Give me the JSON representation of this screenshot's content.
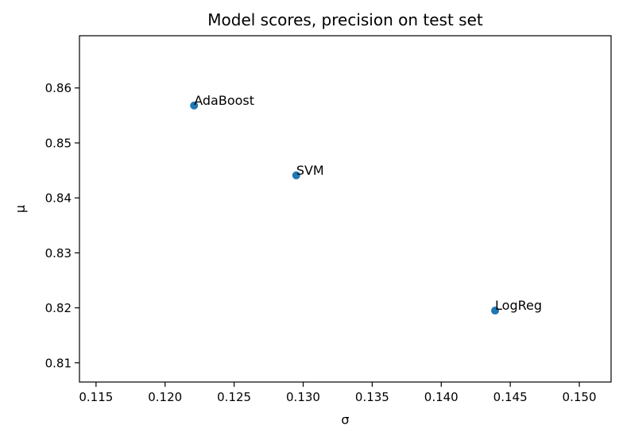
{
  "chart_data": {
    "type": "scatter",
    "title": "Model scores, precision on test set",
    "xlabel": "σ",
    "ylabel": "μ",
    "xlim": [
      0.1138,
      0.1523
    ],
    "ylim": [
      0.8065,
      0.8695
    ],
    "xticks": [
      0.115,
      0.12,
      0.125,
      0.13,
      0.135,
      0.14,
      0.145,
      0.15
    ],
    "xtick_labels": [
      "0.115",
      "0.120",
      "0.125",
      "0.130",
      "0.135",
      "0.140",
      "0.145",
      "0.150"
    ],
    "yticks": [
      0.81,
      0.82,
      0.83,
      0.84,
      0.85,
      0.86
    ],
    "ytick_labels": [
      "0.81",
      "0.82",
      "0.83",
      "0.84",
      "0.85",
      "0.86"
    ],
    "grid": false,
    "point_color": "#1f77b4",
    "points": [
      {
        "label": "AdaBoost",
        "x": 0.1221,
        "y": 0.8568
      },
      {
        "label": "SVM",
        "x": 0.1295,
        "y": 0.8441
      },
      {
        "label": "LogReg",
        "x": 0.1439,
        "y": 0.8195
      }
    ]
  }
}
